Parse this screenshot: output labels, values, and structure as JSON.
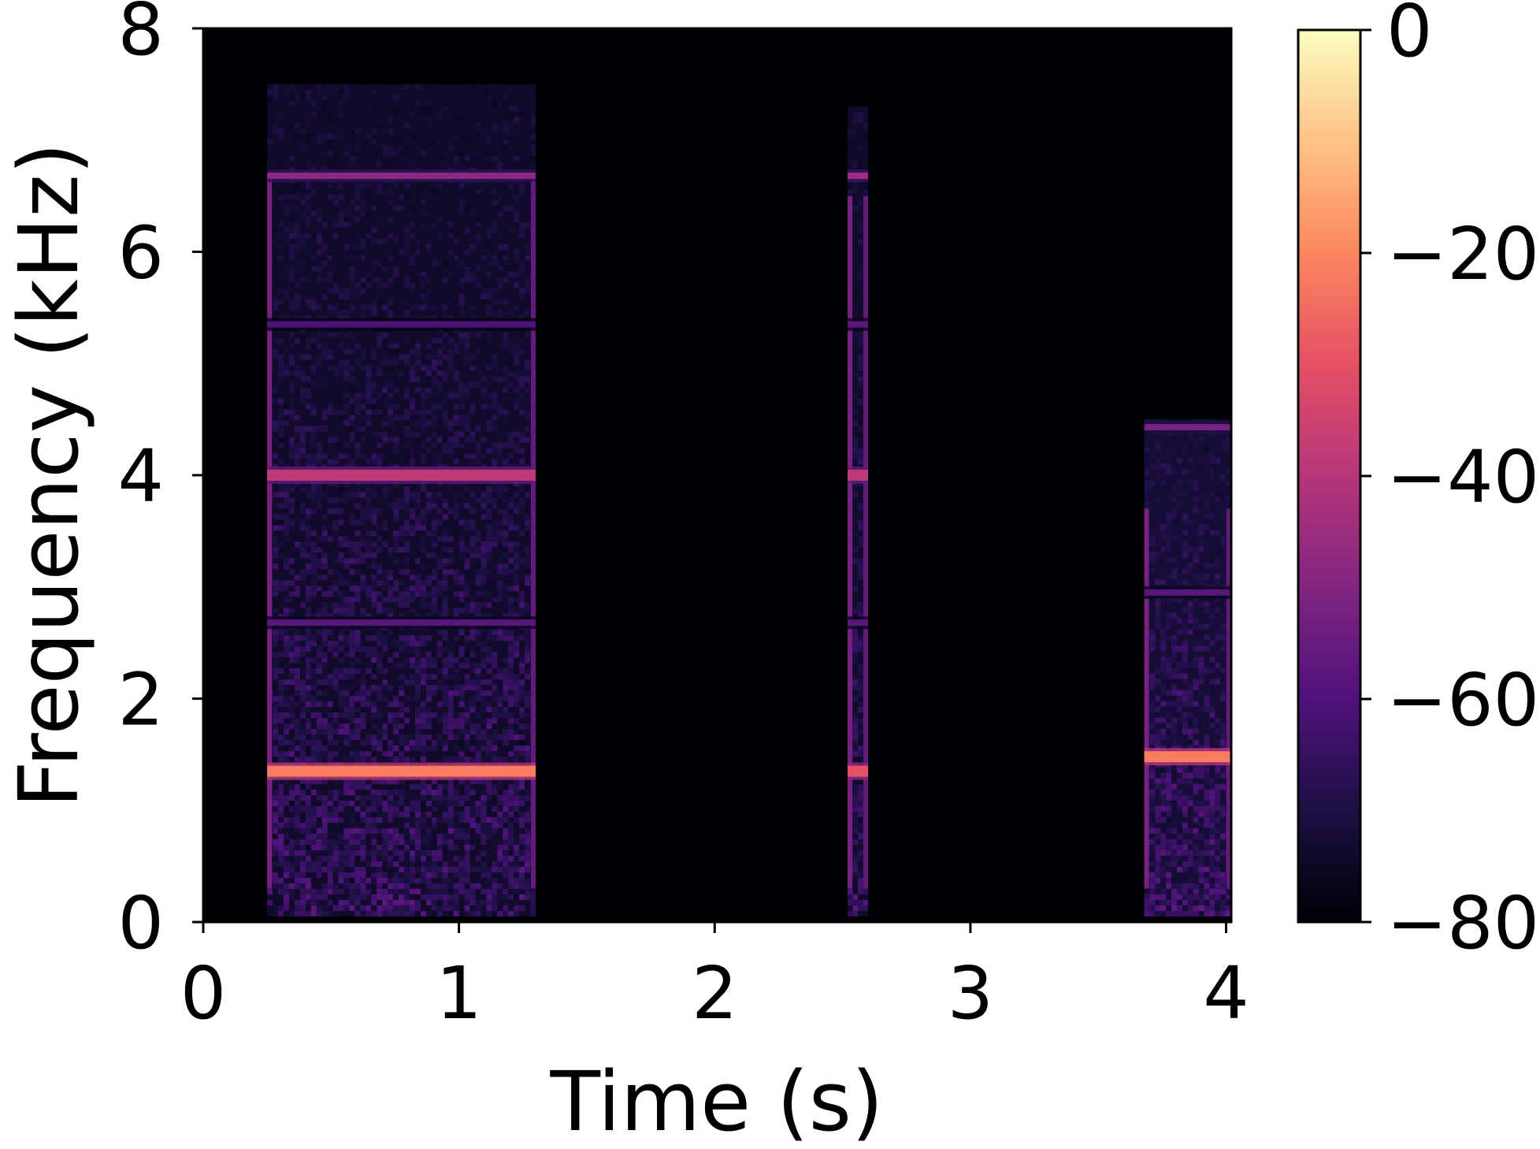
{
  "chart_data": {
    "type": "heatmap",
    "subtype": "spectrogram",
    "title": "",
    "xlabel": "Time (s)",
    "ylabel": "Frequency (kHz)",
    "xlim": [
      0,
      4.02
    ],
    "ylim": [
      0,
      8
    ],
    "xticks": [
      0,
      1,
      2,
      3,
      4
    ],
    "xtick_labels": [
      "0",
      "1",
      "2",
      "3",
      "4"
    ],
    "yticks": [
      0,
      2,
      4,
      6,
      8
    ],
    "ytick_labels": [
      "0",
      "2",
      "4",
      "6",
      "8"
    ],
    "colormap": "magma",
    "colorbar": {
      "range": [
        -80,
        0
      ],
      "ticks": [
        0,
        -20,
        -40,
        -60,
        -80
      ],
      "tick_labels": [
        "0",
        "−20",
        "−40",
        "−60",
        "−80"
      ]
    },
    "background_level_db": -80,
    "segments": [
      {
        "t_start": 0.25,
        "t_end": 1.3,
        "noise_level_db": -66,
        "noise_top_khz": 7.5,
        "harmonics_khz": [
          1.35,
          2.68,
          4.0,
          5.35,
          6.68
        ],
        "harmonic_levels_db": [
          -22,
          -58,
          -38,
          -60,
          -48
        ]
      },
      {
        "t_start": 2.52,
        "t_end": 2.6,
        "noise_level_db": -66,
        "noise_top_khz": 7.3,
        "harmonics_khz": [
          1.35,
          2.68,
          4.0,
          5.35,
          6.68
        ],
        "harmonic_levels_db": [
          -30,
          -58,
          -38,
          -58,
          -45
        ]
      },
      {
        "t_start": 3.68,
        "t_end": 4.02,
        "noise_level_db": -64,
        "noise_top_khz": 4.5,
        "harmonics_khz": [
          1.48,
          2.95,
          4.43
        ],
        "harmonic_levels_db": [
          -22,
          -58,
          -52
        ]
      }
    ]
  }
}
